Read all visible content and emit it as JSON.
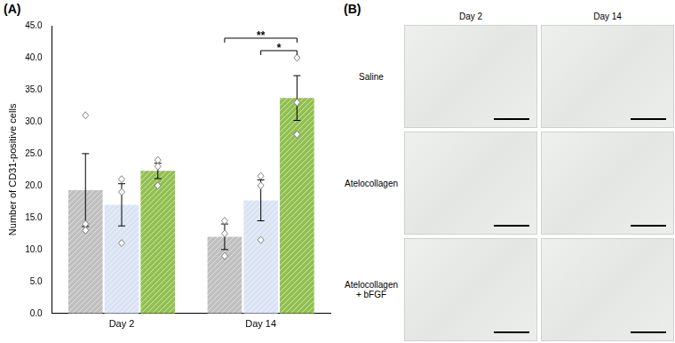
{
  "panel_a": "(A)",
  "chart_data": {
    "type": "bar",
    "categories": [
      "Day 2",
      "Day 14"
    ],
    "y_label": "Number of CD31-positive cells",
    "ylim": [
      0,
      45
    ],
    "yticks": [
      {
        "value": 0,
        "label": "0.0"
      },
      {
        "value": 5,
        "label": "5.0"
      },
      {
        "value": 10,
        "label": "10.0"
      },
      {
        "value": 15,
        "label": "15.0"
      },
      {
        "value": 20,
        "label": "20.0"
      },
      {
        "value": 25,
        "label": "25.0"
      },
      {
        "value": 30,
        "label": "30.0"
      },
      {
        "value": 35,
        "label": "35.0"
      },
      {
        "value": 40,
        "label": "40.0"
      },
      {
        "value": 45,
        "label": "45.0"
      }
    ],
    "grid": false,
    "series": [
      {
        "color": "#bfbfbf",
        "values": [
          19.3,
          12.0
        ],
        "errors": [
          5.7,
          2.0
        ],
        "points": [
          [
            31,
            14,
            13
          ],
          [
            14.5,
            12.5,
            9
          ]
        ]
      },
      {
        "color": "#dae3f3",
        "values": [
          17.0,
          17.7
        ],
        "errors": [
          3.3,
          3.2
        ],
        "points": [
          [
            21,
            19,
            11
          ],
          [
            21.5,
            20,
            11.5
          ]
        ]
      },
      {
        "color": "#92c050",
        "values": [
          22.3,
          33.7
        ],
        "errors": [
          1.2,
          3.5
        ],
        "points": [
          [
            24,
            23,
            20
          ],
          [
            40,
            33,
            28
          ]
        ]
      }
    ],
    "annotations": [
      {
        "text": "**",
        "category": "Day 14",
        "between": [
          0,
          2
        ]
      },
      {
        "text": "*",
        "category": "Day 14",
        "between": [
          1,
          2
        ]
      }
    ]
  },
  "panel_b": {
    "label": "(B)",
    "columns": [
      "Day 2",
      "Day 14"
    ],
    "rows": [
      "Saline",
      "Atelocollagen",
      "Atelocollagen + bFGF"
    ]
  }
}
